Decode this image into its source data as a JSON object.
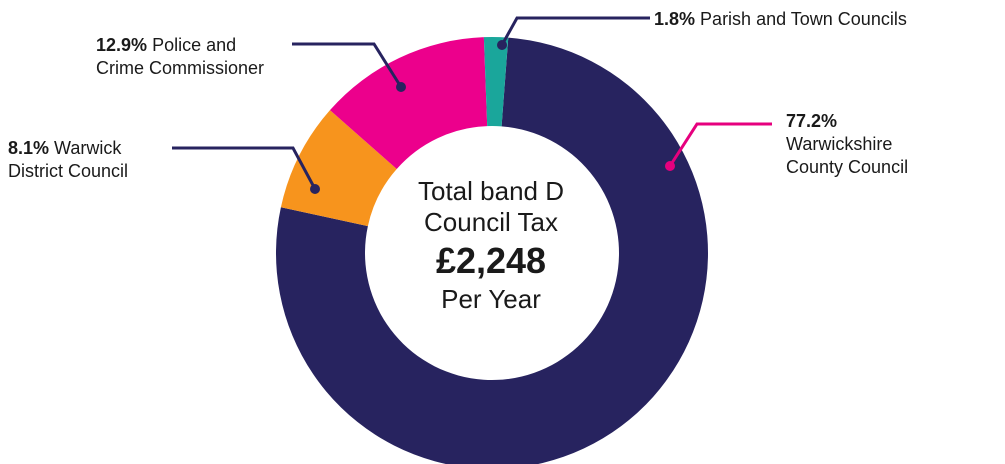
{
  "chart_data": {
    "type": "pie",
    "style": "donut",
    "center": {
      "line1": "Total band D",
      "line2": "Council Tax",
      "amount": "£2,248",
      "line3": "Per Year"
    },
    "slices": [
      {
        "label": "Warwickshire County Council",
        "value": 77.2,
        "display": "77.2%",
        "name_line1": "Warwickshire",
        "name_line2": "County Council",
        "color": "#27235f",
        "leader_color": "#e6007e"
      },
      {
        "label": "Warwick District Council",
        "value": 8.1,
        "display": "8.1%",
        "name_line1": "Warwick",
        "name_line2": "District Council",
        "color": "#f7941d",
        "leader_color": "#27235f"
      },
      {
        "label": "Police and Crime Commissioner",
        "value": 12.9,
        "display": "12.9%",
        "name_line1": "Police and",
        "name_line2": "Crime Commissioner",
        "color": "#ec008c",
        "leader_color": "#27235f"
      },
      {
        "label": "Parish and Town Councils",
        "value": 1.8,
        "display": "1.8%",
        "name_line1": "Parish and Town Councils",
        "name_line2": "",
        "color": "#1aa69b",
        "leader_color": "#27235f"
      }
    ]
  }
}
